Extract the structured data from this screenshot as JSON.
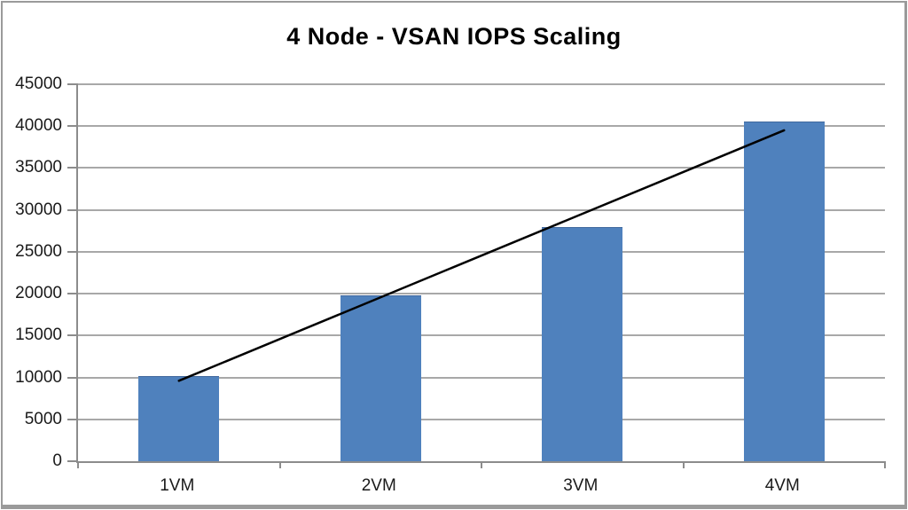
{
  "chart_data": {
    "type": "bar",
    "title": "4 Node - VSAN IOPS Scaling",
    "categories": [
      "1VM",
      "2VM",
      "3VM",
      "4VM"
    ],
    "values": [
      10050,
      19700,
      27900,
      40500
    ],
    "xlabel": "",
    "ylabel": "",
    "ylim": [
      0,
      45000
    ],
    "yticks": [
      0,
      5000,
      10000,
      15000,
      20000,
      25000,
      30000,
      35000,
      40000,
      45000
    ],
    "grid": "horizontal",
    "legend": "none",
    "bar_width_ratio": 0.4,
    "trendline": {
      "type": "linear",
      "start_value": 9600,
      "end_value": 39500
    }
  },
  "colors": {
    "bar_fill": "#4F81BD",
    "bar_border": "#41699E",
    "gridline": "#A8A8A8",
    "axis": "#8C8C8C",
    "trendline": "#000000",
    "text": "#1A1A1A",
    "frame_border": "#9A9A9A",
    "background": "#FFFFFF"
  }
}
